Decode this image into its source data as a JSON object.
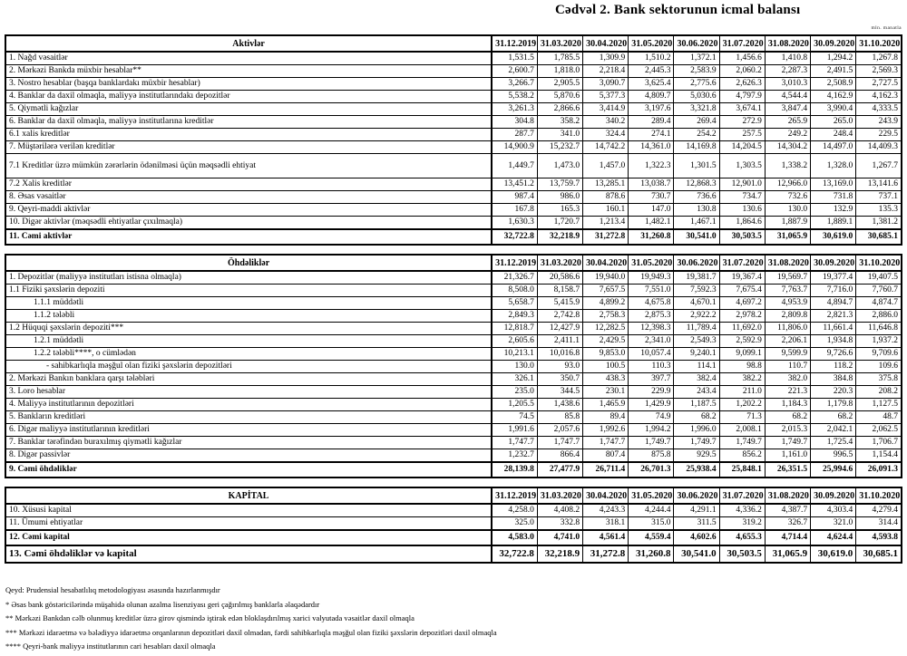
{
  "title": "Cədvəl 2. Bank sektorunun icmal balansı",
  "units_note": "mln. manatla",
  "columns": [
    "31.12.2019",
    "31.03.2020",
    "30.04.2020",
    "31.05.2020",
    "30.06.2020",
    "31.07.2020",
    "31.08.2020",
    "30.09.2020",
    "31.10.2020"
  ],
  "sections": [
    {
      "header": "Aktivlər",
      "rows": [
        {
          "label": "1. Nağd vəsaitlər",
          "values": [
            "1,531.5",
            "1,785.5",
            "1,309.9",
            "1,510.2",
            "1,372.1",
            "1,456.6",
            "1,410.8",
            "1,294.2",
            "1,267.8"
          ]
        },
        {
          "label": "2. Mərkəzi Bankda müxbir hesablar**",
          "values": [
            "2,600.7",
            "1,818.0",
            "2,218.4",
            "2,445.3",
            "2,583.9",
            "2,060.2",
            "2,287.3",
            "2,491.5",
            "2,569.3"
          ]
        },
        {
          "label": "3. Nostro hesablar (başqa banklardakı müxbir hesablar)",
          "values": [
            "3,266.7",
            "2,905.5",
            "3,090.7",
            "3,625.4",
            "2,775.6",
            "2,626.3",
            "3,010.3",
            "2,508.9",
            "2,727.5"
          ]
        },
        {
          "label": "4. Banklar da daxil olmaqla, maliyyə institutlarındakı depozitlər",
          "values": [
            "5,538.2",
            "5,870.6",
            "5,377.3",
            "4,809.7",
            "5,030.6",
            "4,797.9",
            "4,544.4",
            "4,162.9",
            "4,162.3"
          ]
        },
        {
          "label": "5. Qiymətli kağızlar",
          "values": [
            "3,261.3",
            "2,866.6",
            "3,414.9",
            "3,197.6",
            "3,321.8",
            "3,674.1",
            "3,847.4",
            "3,990.4",
            "4,333.5"
          ]
        },
        {
          "label": "6. Banklar da daxil olmaqla, maliyyə institutlarına kreditlər",
          "values": [
            "304.8",
            "358.2",
            "340.2",
            "289.4",
            "269.4",
            "272.9",
            "265.9",
            "265.0",
            "243.9"
          ]
        },
        {
          "label": "6.1 xalis kreditlər",
          "values": [
            "287.7",
            "341.0",
            "324.4",
            "274.1",
            "254.2",
            "257.5",
            "249.2",
            "248.4",
            "229.5"
          ]
        },
        {
          "label": "7. Müştərilərə verilən kreditlər",
          "values": [
            "14,900.9",
            "15,232.7",
            "14,742.2",
            "14,361.0",
            "14,169.8",
            "14,204.5",
            "14,304.2",
            "14,497.0",
            "14,409.3"
          ]
        },
        {
          "label": "7.1 Kreditlər üzrə mümkün zərərlərin ödənilməsi üçün məqsədli ehtiyat",
          "tall": true,
          "values": [
            "1,449.7",
            "1,473.0",
            "1,457.0",
            "1,322.3",
            "1,301.5",
            "1,303.5",
            "1,338.2",
            "1,328.0",
            "1,267.7"
          ]
        },
        {
          "label": "7.2 Xalis kreditlər",
          "values": [
            "13,451.2",
            "13,759.7",
            "13,285.1",
            "13,038.7",
            "12,868.3",
            "12,901.0",
            "12,966.0",
            "13,169.0",
            "13,141.6"
          ]
        },
        {
          "label": "8.  Əsas vəsaitlər",
          "values": [
            "987.4",
            "986.0",
            "878.6",
            "730.7",
            "736.6",
            "734.7",
            "732.6",
            "731.8",
            "737.1"
          ]
        },
        {
          "label": "9. Qeyri-maddi aktivlər",
          "values": [
            "167.8",
            "165.3",
            "160.1",
            "147.0",
            "130.8",
            "130.6",
            "130.0",
            "132.9",
            "135.3"
          ]
        },
        {
          "label": "10. Digər aktivlər (məqsədli ehtiyatlar çıxılmaqla)",
          "values": [
            "1,630.3",
            "1,720.7",
            "1,213.4",
            "1,482.1",
            "1,467.1",
            "1,864.6",
            "1,887.9",
            "1,889.1",
            "1,381.2"
          ]
        },
        {
          "label": "11. Cəmi aktivlər",
          "bold": true,
          "values": [
            "32,722.8",
            "32,218.9",
            "31,272.8",
            "31,260.8",
            "30,541.0",
            "30,503.5",
            "31,065.9",
            "30,619.0",
            "30,685.1"
          ]
        }
      ]
    },
    {
      "header": "Öhdəliklər",
      "rows": [
        {
          "label": "1. Depozitlər (maliyyə institutları istisna olmaqla)",
          "values": [
            "21,326.7",
            "20,586.6",
            "19,940.0",
            "19,949.3",
            "19,381.7",
            "19,367.4",
            "19,569.7",
            "19,377.4",
            "19,407.5"
          ]
        },
        {
          "label": "1.1 Fiziki şəxslərin depoziti",
          "values": [
            "8,508.0",
            "8,158.7",
            "7,657.5",
            "7,551.0",
            "7,592.3",
            "7,675.4",
            "7,763.7",
            "7,716.0",
            "7,760.7"
          ]
        },
        {
          "label": "1.1.1 müddətli",
          "indent": 1,
          "values": [
            "5,658.7",
            "5,415.9",
            "4,899.2",
            "4,675.8",
            "4,670.1",
            "4,697.2",
            "4,953.9",
            "4,894.7",
            "4,874.7"
          ]
        },
        {
          "label": "1.1.2 tələbli",
          "indent": 1,
          "values": [
            "2,849.3",
            "2,742.8",
            "2,758.3",
            "2,875.3",
            "2,922.2",
            "2,978.2",
            "2,809.8",
            "2,821.3",
            "2,886.0"
          ]
        },
        {
          "label": "1.2 Hüquqi şəxslərin depoziti***",
          "values": [
            "12,818.7",
            "12,427.9",
            "12,282.5",
            "12,398.3",
            "11,789.4",
            "11,692.0",
            "11,806.0",
            "11,661.4",
            "11,646.8"
          ]
        },
        {
          "label": "1.2.1 müddətli",
          "indent": 1,
          "values": [
            "2,605.6",
            "2,411.1",
            "2,429.5",
            "2,341.0",
            "2,549.3",
            "2,592.9",
            "2,206.1",
            "1,934.8",
            "1,937.2"
          ]
        },
        {
          "label": "1.2.2 tələbli****, o cümlədən",
          "indent": 1,
          "values": [
            "10,213.1",
            "10,016.8",
            "9,853.0",
            "10,057.4",
            "9,240.1",
            "9,099.1",
            "9,599.9",
            "9,726.6",
            "9,709.6"
          ]
        },
        {
          "label": "- sahibkarlıqla məşğul olan fiziki şəxslərin depozitləri",
          "indent": 2,
          "values": [
            "130.0",
            "93.0",
            "100.5",
            "110.3",
            "114.1",
            "98.8",
            "110.7",
            "118.2",
            "109.6"
          ]
        },
        {
          "label": "2. Mərkəzi Bankın banklara qarşı tələbləri",
          "values": [
            "326.1",
            "350.7",
            "438.3",
            "397.7",
            "382.4",
            "382.2",
            "382.0",
            "384.8",
            "375.8"
          ]
        },
        {
          "label": "3. Loro hesablar",
          "values": [
            "235.0",
            "344.5",
            "230.1",
            "229.9",
            "243.4",
            "211.0",
            "221.3",
            "220.3",
            "208.2"
          ]
        },
        {
          "label": "4. Maliyyə institutlarının  depozitləri",
          "values": [
            "1,205.5",
            "1,438.6",
            "1,465.9",
            "1,429.9",
            "1,187.5",
            "1,202.2",
            "1,184.3",
            "1,179.8",
            "1,127.5"
          ]
        },
        {
          "label": "5. Bankların kreditləri",
          "values": [
            "74.5",
            "85.8",
            "89.4",
            "74.9",
            "68.2",
            "71.3",
            "68.2",
            "68.2",
            "48.7"
          ]
        },
        {
          "label": "6. Digər maliyyə institutlarının kreditləri",
          "values": [
            "1,991.6",
            "2,057.6",
            "1,992.6",
            "1,994.2",
            "1,996.0",
            "2,008.1",
            "2,015.3",
            "2,042.1",
            "2,062.5"
          ]
        },
        {
          "label": "7. Banklar tərəfindən buraxılmış qiymətli kağızlar",
          "values": [
            "1,747.7",
            "1,747.7",
            "1,747.7",
            "1,749.7",
            "1,749.7",
            "1,749.7",
            "1,749.7",
            "1,725.4",
            "1,706.7"
          ]
        },
        {
          "label": "8. Digər passivlər",
          "values": [
            "1,232.7",
            "866.4",
            "807.4",
            "875.8",
            "929.5",
            "856.2",
            "1,161.0",
            "996.5",
            "1,154.4"
          ]
        },
        {
          "label": "9. Cəmi öhdəliklər",
          "bold": true,
          "values": [
            "28,139.8",
            "27,477.9",
            "26,711.4",
            "26,701.3",
            "25,938.4",
            "25,848.1",
            "26,351.5",
            "25,994.6",
            "26,091.3"
          ]
        }
      ]
    },
    {
      "header": "KAPİTAL",
      "rows": [
        {
          "label": "10. Xüsusi kapital",
          "values": [
            "4,258.0",
            "4,408.2",
            "4,243.3",
            "4,244.4",
            "4,291.1",
            "4,336.2",
            "4,387.7",
            "4,303.4",
            "4,279.4"
          ]
        },
        {
          "label": "11. Ümumi ehtiyatlar",
          "values": [
            "325.0",
            "332.8",
            "318.1",
            "315.0",
            "311.5",
            "319.2",
            "326.7",
            "321.0",
            "314.4"
          ]
        },
        {
          "label": "12. Cəmi kapital",
          "bold": true,
          "values": [
            "4,583.0",
            "4,741.0",
            "4,561.4",
            "4,559.4",
            "4,602.6",
            "4,655.3",
            "4,714.4",
            "4,624.4",
            "4,593.8"
          ]
        },
        {
          "label": "13. Cəmi öhdəliklər və kapital",
          "grand": true,
          "values": [
            "32,722.8",
            "32,218.9",
            "31,272.8",
            "31,260.8",
            "30,541.0",
            "30,503.5",
            "31,065.9",
            "30,619.0",
            "30,685.1"
          ]
        }
      ]
    }
  ],
  "footnotes": [
    "Qeyd: Prudensial hesabatlılıq metodologiyası əsasında hazırlanmışdır",
    "* Əsas bank göstəricilərində müşahidə olunan azalma lisenziyası geri çağırılmış banklarla əlaqədardır",
    "** Mərkəzi Bankdan cəlb olunmuş kreditlər üzrə girov qismində iştirak edən bloklaşdırılmış xarici valyutada vəsaitlər daxil olmaqla",
    "*** Mərkəzi idarəetmə və bələdiyyə idarəetmə orqanlarının depozitləri daxil olmadan, fərdi sahibkarlıqla məşğul olan fiziki şəxslərin depozitləri daxil olmaqla",
    "**** Qeyri-bank maliyyə institutlarının cari hesabları daxil olmaqla"
  ]
}
